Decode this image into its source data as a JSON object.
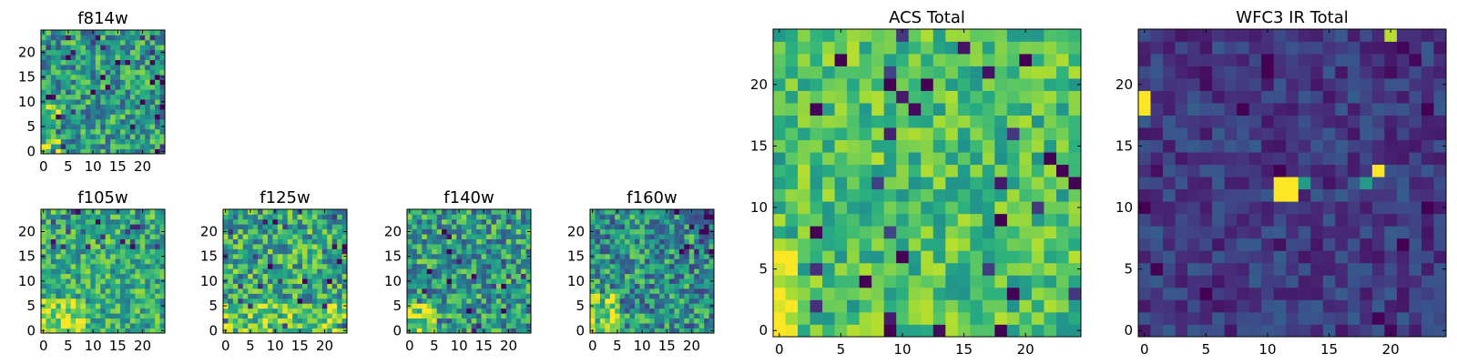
{
  "figure": {
    "colormap": "viridis",
    "colors": {
      "low": "#440154",
      "mid": "#21918c",
      "high": "#fde725",
      "frame": "#000000",
      "background": "#ffffff"
    }
  },
  "chart_data": [
    {
      "id": "f814w",
      "type": "heatmap",
      "title": "f814w",
      "grid_size": 25,
      "xlim": [
        -0.5,
        24.5
      ],
      "ylim": [
        -0.5,
        24.5
      ],
      "xticks": [
        0,
        5,
        10,
        15,
        20
      ],
      "yticks": [
        0,
        5,
        10,
        15,
        20
      ],
      "values": []
    },
    {
      "id": "f105w",
      "type": "heatmap",
      "title": "f105w",
      "grid_size": 25,
      "xlim": [
        -0.5,
        24.5
      ],
      "ylim": [
        -0.5,
        24.5
      ],
      "xticks": [
        0,
        5,
        10,
        15,
        20
      ],
      "yticks": [
        0,
        5,
        10,
        15,
        20
      ],
      "values": []
    },
    {
      "id": "f125w",
      "type": "heatmap",
      "title": "f125w",
      "grid_size": 25,
      "xlim": [
        -0.5,
        24.5
      ],
      "ylim": [
        -0.5,
        24.5
      ],
      "xticks": [
        0,
        5,
        10,
        15,
        20
      ],
      "yticks": [
        0,
        5,
        10,
        15,
        20
      ],
      "values": []
    },
    {
      "id": "f140w",
      "type": "heatmap",
      "title": "f140w",
      "grid_size": 25,
      "xlim": [
        -0.5,
        24.5
      ],
      "ylim": [
        -0.5,
        24.5
      ],
      "xticks": [
        0,
        5,
        10,
        15,
        20
      ],
      "yticks": [
        0,
        5,
        10,
        15,
        20
      ],
      "values": []
    },
    {
      "id": "f160w",
      "type": "heatmap",
      "title": "f160w",
      "grid_size": 25,
      "xlim": [
        -0.5,
        24.5
      ],
      "ylim": [
        -0.5,
        24.5
      ],
      "xticks": [
        0,
        5,
        10,
        15,
        20
      ],
      "yticks": [
        0,
        5,
        10,
        15,
        20
      ],
      "values": []
    },
    {
      "id": "acs_total",
      "type": "heatmap",
      "title": "ACS Total",
      "grid_size": 25,
      "xlim": [
        -0.5,
        24.5
      ],
      "ylim": [
        -0.5,
        24.5
      ],
      "xticks": [
        0,
        5,
        10,
        15,
        20
      ],
      "yticks": [
        0,
        5,
        10,
        15,
        20
      ],
      "values": []
    },
    {
      "id": "wfc3_ir_total",
      "type": "heatmap",
      "title": "WFC3 IR Total",
      "grid_size": 25,
      "xlim": [
        -0.5,
        24.5
      ],
      "ylim": [
        -0.5,
        24.5
      ],
      "xticks": [
        0,
        5,
        10,
        15,
        20
      ],
      "yticks": [
        0,
        5,
        10,
        15,
        20
      ],
      "values": []
    }
  ]
}
